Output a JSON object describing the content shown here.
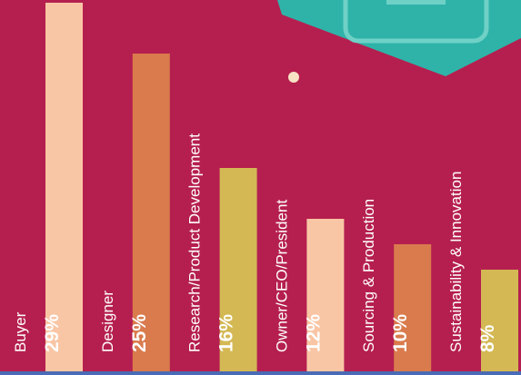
{
  "chart_data": {
    "type": "bar",
    "categories": [
      "Buyer",
      "Designer",
      "Research/Product Development",
      "Owner/CEO/President",
      "Sourcing & Production",
      "Sustainability & Innovation"
    ],
    "values": [
      29,
      25,
      16,
      12,
      10,
      8
    ],
    "value_labels": [
      "29%",
      "25%",
      "16%",
      "12%",
      "10%",
      "8%"
    ],
    "colors": [
      "#f9c6a5",
      "#d97b4d",
      "#d3b854",
      "#f9c6a5",
      "#d97b4d",
      "#d3b854"
    ]
  }
}
